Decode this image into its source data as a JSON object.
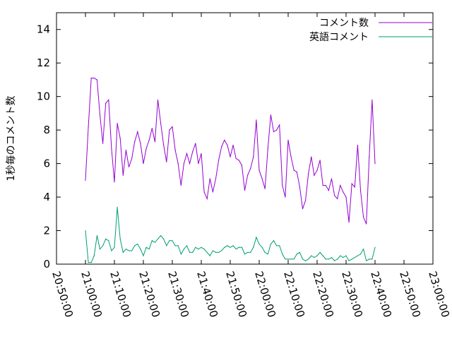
{
  "chart_data": {
    "type": "line",
    "title": "",
    "xlabel": "",
    "ylabel": "1秒毎のコメント数",
    "ylim": [
      0,
      15
    ],
    "yticks": [
      0,
      2,
      4,
      6,
      8,
      10,
      12,
      14
    ],
    "xlim_seconds": [
      75000,
      82800
    ],
    "xticks": [
      "20:50:00",
      "21:00:00",
      "21:10:00",
      "21:20:00",
      "21:30:00",
      "21:40:00",
      "21:50:00",
      "22:00:00",
      "22:10:00",
      "22:20:00",
      "22:30:00",
      "22:40:00",
      "22:50:00",
      "23:00:00"
    ],
    "x_start": "21:00:00",
    "x_step_seconds": 60,
    "legend_position": "top-right",
    "grid": false,
    "series": [
      {
        "name": "コメント数",
        "color": "#9400d3",
        "values": [
          5.0,
          8.2,
          11.1,
          11.1,
          11.0,
          8.9,
          7.2,
          9.6,
          9.8,
          6.9,
          4.9,
          8.4,
          7.5,
          5.3,
          6.8,
          5.8,
          6.3,
          7.3,
          7.9,
          7.2,
          6.0,
          6.9,
          7.4,
          8.1,
          7.3,
          9.8,
          8.4,
          7.1,
          6.1,
          8.0,
          8.2,
          6.8,
          6.0,
          4.7,
          6.0,
          6.6,
          6.0,
          6.7,
          7.2,
          6.0,
          6.6,
          4.3,
          3.9,
          5.1,
          4.3,
          5.1,
          6.2,
          7.0,
          7.4,
          7.1,
          6.4,
          7.1,
          6.3,
          6.2,
          5.9,
          4.4,
          5.3,
          5.7,
          6.4,
          8.6,
          5.6,
          5.1,
          4.5,
          6.9,
          8.9,
          7.9,
          8.0,
          8.3,
          4.7,
          4.0,
          7.4,
          6.4,
          5.6,
          5.5,
          4.6,
          3.3,
          3.8,
          5.4,
          6.4,
          5.3,
          5.6,
          6.2,
          4.7,
          4.7,
          4.4,
          5.1,
          4.1,
          3.9,
          4.7,
          4.3,
          4.0,
          2.5,
          4.8,
          4.6,
          7.1,
          4.4,
          2.8,
          2.4,
          6.4,
          9.8,
          6.0
        ]
      },
      {
        "name": "英語コメント",
        "color": "#009e73",
        "values": [
          2.0,
          0.1,
          0.1,
          0.5,
          1.7,
          0.9,
          1.1,
          1.5,
          1.4,
          0.8,
          1.0,
          3.4,
          1.5,
          0.7,
          0.9,
          0.8,
          0.8,
          1.1,
          1.2,
          0.9,
          0.5,
          1.0,
          0.9,
          1.4,
          1.3,
          1.5,
          1.7,
          1.5,
          1.1,
          1.4,
          1.4,
          1.1,
          1.1,
          0.6,
          0.9,
          1.1,
          0.7,
          0.7,
          1.0,
          0.9,
          1.0,
          0.9,
          0.7,
          0.5,
          0.8,
          0.7,
          0.7,
          0.8,
          1.0,
          1.1,
          1.0,
          1.1,
          0.9,
          1.0,
          1.0,
          0.6,
          0.7,
          0.7,
          1.0,
          1.6,
          1.2,
          1.0,
          0.7,
          0.6,
          1.2,
          1.4,
          1.1,
          1.1,
          0.6,
          0.3,
          0.3,
          0.3,
          0.3,
          0.6,
          0.7,
          0.3,
          0.2,
          0.3,
          0.5,
          0.4,
          0.5,
          0.7,
          0.5,
          0.3,
          0.3,
          0.4,
          0.2,
          0.3,
          0.5,
          0.4,
          0.5,
          0.2,
          0.3,
          0.4,
          0.5,
          0.6,
          0.9,
          0.2,
          0.3,
          0.3,
          1.0
        ]
      }
    ]
  }
}
